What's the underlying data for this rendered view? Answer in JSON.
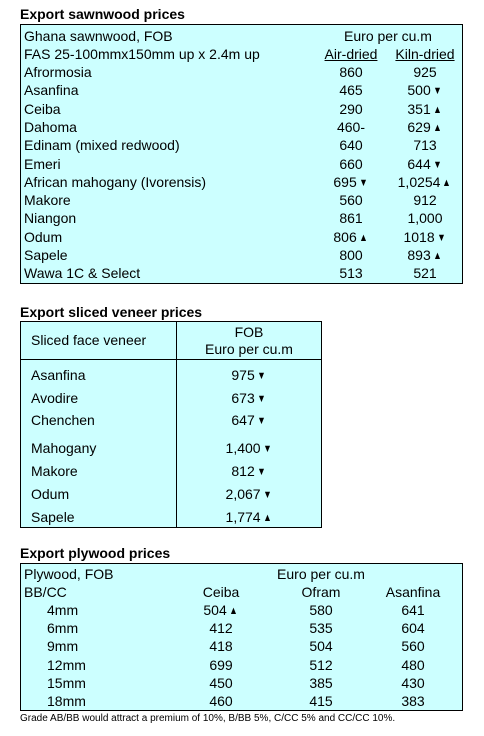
{
  "sawnwood": {
    "title": "Export sawnwood prices",
    "header_left_1": "Ghana sawnwood, FOB",
    "header_left_2": "FAS 25-100mmx150mm up x 2.4m up",
    "header_unit": "Euro per cu.m",
    "col_air": "Air-dried",
    "col_kiln": "Kiln-dried",
    "rows": [
      {
        "name": "Afrormosia",
        "air": "860",
        "air_arrow": "",
        "kiln": "925",
        "kiln_arrow": ""
      },
      {
        "name": "Asanfina",
        "air": "465",
        "air_arrow": "",
        "kiln": "500",
        "kiln_arrow": "down"
      },
      {
        "name": "Ceiba",
        "air": "290",
        "air_arrow": "",
        "kiln": "351",
        "kiln_arrow": "up"
      },
      {
        "name": "Dahoma",
        "air": "460-",
        "air_arrow": "",
        "kiln": "629",
        "kiln_arrow": "up"
      },
      {
        "name": "Edinam (mixed redwood)",
        "air": "640",
        "air_arrow": "",
        "kiln": "713",
        "kiln_arrow": ""
      },
      {
        "name": "Emeri",
        "air": "660",
        "air_arrow": "",
        "kiln": "644",
        "kiln_arrow": "down"
      },
      {
        "name": "African mahogany (Ivorensis)",
        "air": "695",
        "air_arrow": "down",
        "kiln": "1,0254",
        "kiln_arrow": "up"
      },
      {
        "name": "Makore",
        "air": "560",
        "air_arrow": "",
        "kiln": "912",
        "kiln_arrow": ""
      },
      {
        "name": "Niangon",
        "air": "861",
        "air_arrow": "",
        "kiln": "1,000",
        "kiln_arrow": ""
      },
      {
        "name": "Odum",
        "air": "806",
        "air_arrow": "up",
        "kiln": "1018",
        "kiln_arrow": "down"
      },
      {
        "name": "Sapele",
        "air": "800",
        "air_arrow": "",
        "kiln": "893",
        "kiln_arrow": "up"
      },
      {
        "name": "Wawa 1C & Select",
        "air": "513",
        "air_arrow": "",
        "kiln": "521",
        "kiln_arrow": ""
      }
    ]
  },
  "veneer": {
    "title": "Export  sliced veneer  prices",
    "header_left": "Sliced face veneer",
    "header_right_1": "FOB",
    "header_right_2": "Euro per cu.m",
    "rows": [
      {
        "name": "Asanfina",
        "value": "975",
        "arrow": "down"
      },
      {
        "name": "Avodire",
        "value": "673",
        "arrow": "down"
      },
      {
        "name": "Chenchen",
        "value": "647",
        "arrow": "down"
      },
      {
        "name": "Mahogany",
        "value": "1,400",
        "arrow": "down"
      },
      {
        "name": "Makore",
        "value": "812",
        "arrow": "down"
      },
      {
        "name": "Odum",
        "value": "2,067",
        "arrow": "down"
      },
      {
        "name": "Sapele",
        "value": "1,774",
        "arrow": "up"
      }
    ]
  },
  "plywood": {
    "title": "Export plywood prices",
    "header_left_1": "Plywood, FOB",
    "header_left_2": "BB/CC",
    "header_unit": "Euro per cu.m",
    "col_1": "Ceiba",
    "col_2": "Ofram",
    "col_3": "Asanfina",
    "rows": [
      {
        "size": "4mm",
        "ceiba": "504",
        "ceiba_arrow": "up",
        "ofram": "580",
        "asanfina": "641"
      },
      {
        "size": "6mm",
        "ceiba": "412",
        "ceiba_arrow": "",
        "ofram": "535",
        "asanfina": "604"
      },
      {
        "size": "9mm",
        "ceiba": "418",
        "ceiba_arrow": "",
        "ofram": "504",
        "asanfina": "560"
      },
      {
        "size": "12mm",
        "ceiba": "699",
        "ceiba_arrow": "",
        "ofram": "512",
        "asanfina": "480"
      },
      {
        "size": "15mm",
        "ceiba": "450",
        "ceiba_arrow": "",
        "ofram": "385",
        "asanfina": "430"
      },
      {
        "size": "18mm",
        "ceiba": "460",
        "ceiba_arrow": "",
        "ofram": "415",
        "asanfina": "383"
      }
    ],
    "note": "Grade AB/BB would attract a premium of 10%, B/BB 5%, C/CC 5% and CC/CC 10%."
  }
}
